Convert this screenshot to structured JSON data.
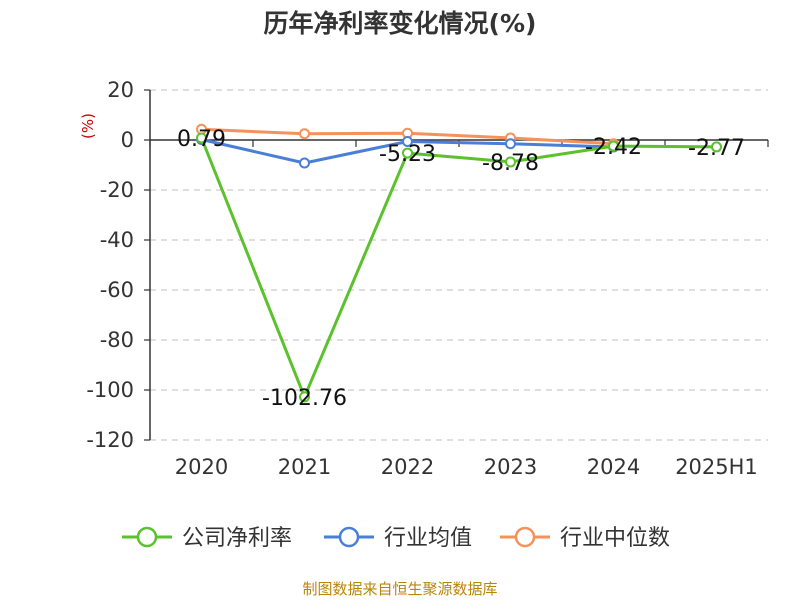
{
  "chart_data": {
    "type": "line",
    "title": "历年净利率变化情况(%)",
    "y_unit": "(%)",
    "categories": [
      "2020",
      "2021",
      "2022",
      "2023",
      "2024",
      "2025H1"
    ],
    "ylim": [
      -120,
      20
    ],
    "yticks": [
      "20",
      "0",
      "-20",
      "-40",
      "-60",
      "-80",
      "-100",
      "-120"
    ],
    "ytick_values": [
      20,
      0,
      -20,
      -40,
      -60,
      -80,
      -100,
      -120
    ],
    "grid": true,
    "legend_position": "bottom",
    "series": [
      {
        "name": "公司净利率",
        "color": "#5bc12c",
        "values": [
          0.79,
          -102.76,
          -5.23,
          -8.78,
          -2.42,
          -2.77
        ],
        "labels": [
          "0.79",
          "-102.76",
          "-5.23",
          "-8.78",
          "-2.42",
          "-2.77"
        ]
      },
      {
        "name": "行业均值",
        "color": "#4a7fd8",
        "values": [
          0.2,
          -9.2,
          -0.6,
          -1.5,
          -2.8,
          null
        ]
      },
      {
        "name": "行业中位数",
        "color": "#f5915a",
        "values": [
          4.3,
          2.5,
          2.7,
          0.8,
          -1.5,
          null
        ]
      }
    ]
  },
  "source": "制图数据来自恒生聚源数据库"
}
